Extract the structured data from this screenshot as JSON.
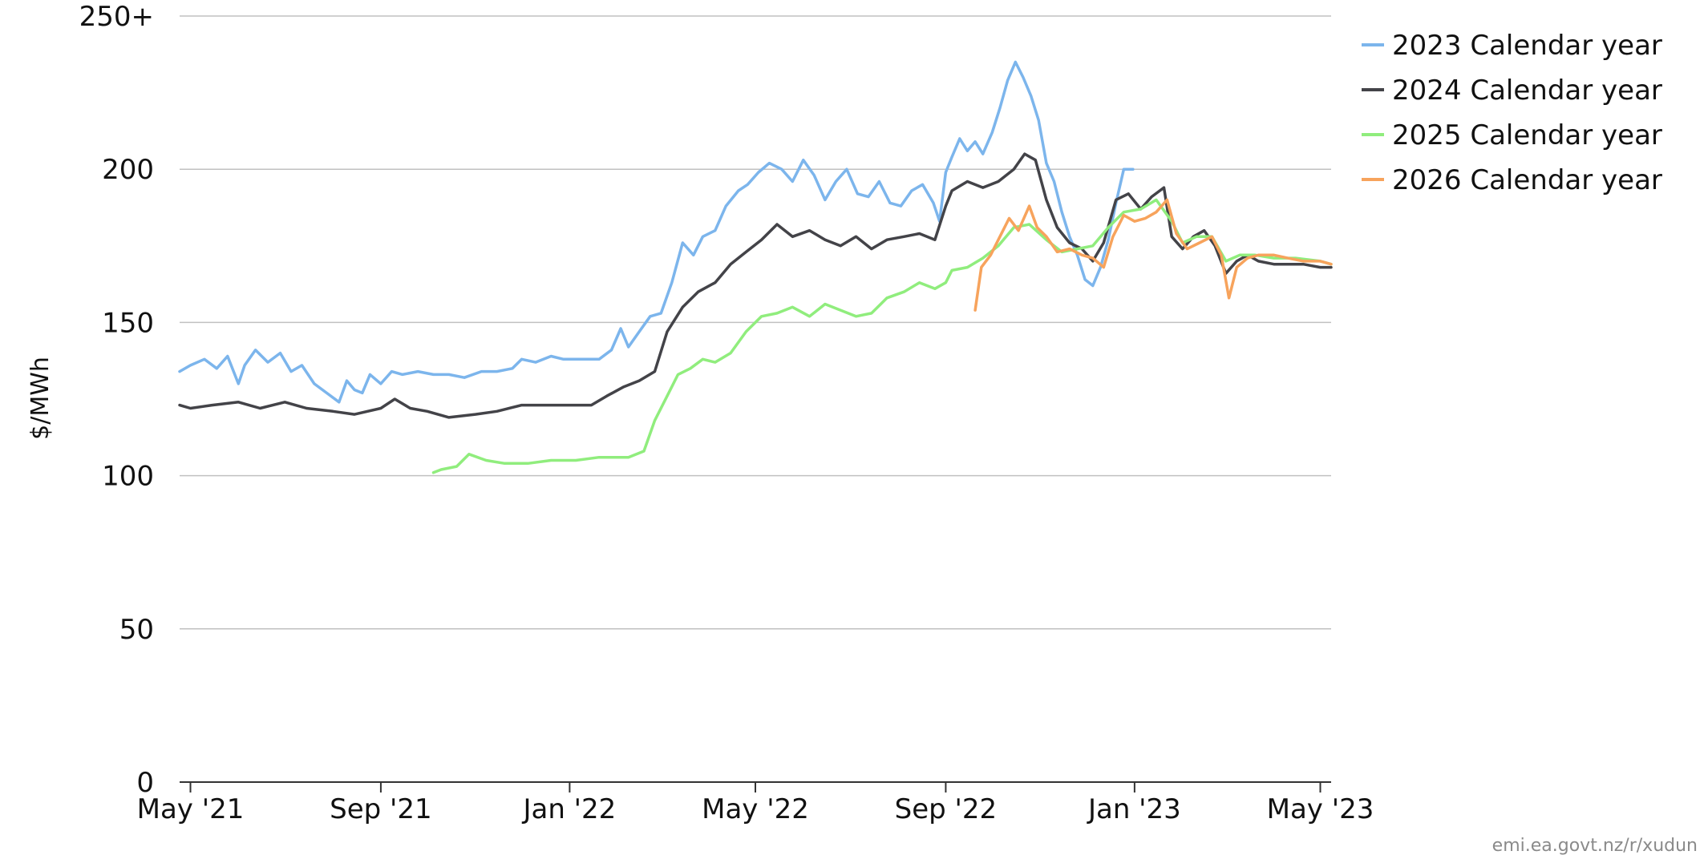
{
  "chart_data": {
    "type": "line",
    "ylabel": "$/MWh",
    "ylim": [
      0,
      250
    ],
    "y_ticks": [
      {
        "value": 0,
        "label": "0"
      },
      {
        "value": 50,
        "label": "50"
      },
      {
        "value": 100,
        "label": "100"
      },
      {
        "value": 150,
        "label": "150"
      },
      {
        "value": 200,
        "label": "200"
      },
      {
        "value": 250,
        "label": "250+"
      }
    ],
    "xlim": [
      "2021-04-24",
      "2023-05-08"
    ],
    "x_ticks": [
      {
        "value": "2021-05-01",
        "label": "May '21"
      },
      {
        "value": "2021-09-01",
        "label": "Sep '21"
      },
      {
        "value": "2022-01-01",
        "label": "Jan '22"
      },
      {
        "value": "2022-05-01",
        "label": "May '22"
      },
      {
        "value": "2022-09-01",
        "label": "Sep '22"
      },
      {
        "value": "2023-01-01",
        "label": "Jan '23"
      },
      {
        "value": "2023-05-01",
        "label": "May '23"
      }
    ],
    "grid": "horizontal",
    "legend_position": "top-right",
    "series": [
      {
        "name": "2023 Calendar year",
        "color": "#7cb5ec",
        "points": [
          [
            "2021-04-24",
            134
          ],
          [
            "2021-05-01",
            136
          ],
          [
            "2021-05-10",
            138
          ],
          [
            "2021-05-18",
            135
          ],
          [
            "2021-05-25",
            139
          ],
          [
            "2021-06-01",
            130
          ],
          [
            "2021-06-05",
            136
          ],
          [
            "2021-06-12",
            141
          ],
          [
            "2021-06-20",
            137
          ],
          [
            "2021-06-28",
            140
          ],
          [
            "2021-07-05",
            134
          ],
          [
            "2021-07-12",
            136
          ],
          [
            "2021-07-20",
            130
          ],
          [
            "2021-07-28",
            127
          ],
          [
            "2021-08-05",
            124
          ],
          [
            "2021-08-10",
            131
          ],
          [
            "2021-08-15",
            128
          ],
          [
            "2021-08-20",
            127
          ],
          [
            "2021-08-25",
            133
          ],
          [
            "2021-09-01",
            130
          ],
          [
            "2021-09-08",
            134
          ],
          [
            "2021-09-15",
            133
          ],
          [
            "2021-09-25",
            134
          ],
          [
            "2021-10-05",
            133
          ],
          [
            "2021-10-15",
            133
          ],
          [
            "2021-10-25",
            132
          ],
          [
            "2021-11-05",
            134
          ],
          [
            "2021-11-15",
            134
          ],
          [
            "2021-11-25",
            135
          ],
          [
            "2021-12-01",
            138
          ],
          [
            "2021-12-10",
            137
          ],
          [
            "2021-12-20",
            139
          ],
          [
            "2021-12-28",
            138
          ],
          [
            "2022-01-10",
            138
          ],
          [
            "2022-01-20",
            138
          ],
          [
            "2022-01-28",
            141
          ],
          [
            "2022-02-03",
            148
          ],
          [
            "2022-02-08",
            142
          ],
          [
            "2022-02-15",
            147
          ],
          [
            "2022-02-22",
            152
          ],
          [
            "2022-03-01",
            153
          ],
          [
            "2022-03-08",
            163
          ],
          [
            "2022-03-15",
            176
          ],
          [
            "2022-03-22",
            172
          ],
          [
            "2022-03-28",
            178
          ],
          [
            "2022-04-05",
            180
          ],
          [
            "2022-04-12",
            188
          ],
          [
            "2022-04-20",
            193
          ],
          [
            "2022-04-26",
            195
          ],
          [
            "2022-05-03",
            199
          ],
          [
            "2022-05-10",
            202
          ],
          [
            "2022-05-18",
            200
          ],
          [
            "2022-05-25",
            196
          ],
          [
            "2022-06-01",
            203
          ],
          [
            "2022-06-08",
            198
          ],
          [
            "2022-06-15",
            190
          ],
          [
            "2022-06-22",
            196
          ],
          [
            "2022-06-29",
            200
          ],
          [
            "2022-07-06",
            192
          ],
          [
            "2022-07-13",
            191
          ],
          [
            "2022-07-20",
            196
          ],
          [
            "2022-07-27",
            189
          ],
          [
            "2022-08-03",
            188
          ],
          [
            "2022-08-10",
            193
          ],
          [
            "2022-08-17",
            195
          ],
          [
            "2022-08-24",
            189
          ],
          [
            "2022-08-28",
            183
          ],
          [
            "2022-09-01",
            199
          ],
          [
            "2022-09-05",
            204
          ],
          [
            "2022-09-10",
            210
          ],
          [
            "2022-09-15",
            206
          ],
          [
            "2022-09-20",
            209
          ],
          [
            "2022-09-25",
            205
          ],
          [
            "2022-10-01",
            212
          ],
          [
            "2022-10-06",
            220
          ],
          [
            "2022-10-11",
            229
          ],
          [
            "2022-10-16",
            235
          ],
          [
            "2022-10-21",
            230
          ],
          [
            "2022-10-26",
            224
          ],
          [
            "2022-10-31",
            216
          ],
          [
            "2022-11-05",
            202
          ],
          [
            "2022-11-10",
            196
          ],
          [
            "2022-11-15",
            186
          ],
          [
            "2022-11-20",
            178
          ],
          [
            "2022-11-25",
            172
          ],
          [
            "2022-11-30",
            164
          ],
          [
            "2022-12-05",
            162
          ],
          [
            "2022-12-10",
            168
          ],
          [
            "2022-12-15",
            177
          ],
          [
            "2022-12-20",
            189
          ],
          [
            "2022-12-25",
            200
          ],
          [
            "2022-12-31",
            200
          ]
        ]
      },
      {
        "name": "2024 Calendar year",
        "color": "#434348",
        "points": [
          [
            "2021-04-24",
            123
          ],
          [
            "2021-05-01",
            122
          ],
          [
            "2021-05-15",
            123
          ],
          [
            "2021-06-01",
            124
          ],
          [
            "2021-06-15",
            122
          ],
          [
            "2021-07-01",
            124
          ],
          [
            "2021-07-15",
            122
          ],
          [
            "2021-08-01",
            121
          ],
          [
            "2021-08-15",
            120
          ],
          [
            "2021-09-01",
            122
          ],
          [
            "2021-09-10",
            125
          ],
          [
            "2021-09-20",
            122
          ],
          [
            "2021-10-01",
            121
          ],
          [
            "2021-10-15",
            119
          ],
          [
            "2021-11-01",
            120
          ],
          [
            "2021-11-15",
            121
          ],
          [
            "2021-12-01",
            123
          ],
          [
            "2021-12-15",
            123
          ],
          [
            "2022-01-01",
            123
          ],
          [
            "2022-01-15",
            123
          ],
          [
            "2022-01-25",
            126
          ],
          [
            "2022-02-05",
            129
          ],
          [
            "2022-02-15",
            131
          ],
          [
            "2022-02-25",
            134
          ],
          [
            "2022-03-05",
            147
          ],
          [
            "2022-03-15",
            155
          ],
          [
            "2022-03-25",
            160
          ],
          [
            "2022-04-05",
            163
          ],
          [
            "2022-04-15",
            169
          ],
          [
            "2022-04-25",
            173
          ],
          [
            "2022-05-05",
            177
          ],
          [
            "2022-05-15",
            182
          ],
          [
            "2022-05-25",
            178
          ],
          [
            "2022-06-05",
            180
          ],
          [
            "2022-06-15",
            177
          ],
          [
            "2022-06-25",
            175
          ],
          [
            "2022-07-05",
            178
          ],
          [
            "2022-07-15",
            174
          ],
          [
            "2022-07-25",
            177
          ],
          [
            "2022-08-05",
            178
          ],
          [
            "2022-08-15",
            179
          ],
          [
            "2022-08-25",
            177
          ],
          [
            "2022-09-01",
            188
          ],
          [
            "2022-09-05",
            193
          ],
          [
            "2022-09-15",
            196
          ],
          [
            "2022-09-25",
            194
          ],
          [
            "2022-10-05",
            196
          ],
          [
            "2022-10-15",
            200
          ],
          [
            "2022-10-22",
            205
          ],
          [
            "2022-10-29",
            203
          ],
          [
            "2022-11-05",
            190
          ],
          [
            "2022-11-12",
            181
          ],
          [
            "2022-11-20",
            176
          ],
          [
            "2022-11-28",
            174
          ],
          [
            "2022-12-05",
            170
          ],
          [
            "2022-12-12",
            176
          ],
          [
            "2022-12-20",
            190
          ],
          [
            "2022-12-28",
            192
          ],
          [
            "2023-01-05",
            187
          ],
          [
            "2023-01-12",
            191
          ],
          [
            "2023-01-20",
            194
          ],
          [
            "2023-01-25",
            178
          ],
          [
            "2023-02-01",
            174
          ],
          [
            "2023-02-08",
            178
          ],
          [
            "2023-02-15",
            180
          ],
          [
            "2023-02-22",
            175
          ],
          [
            "2023-03-01",
            166
          ],
          [
            "2023-03-08",
            170
          ],
          [
            "2023-03-15",
            172
          ],
          [
            "2023-03-22",
            170
          ],
          [
            "2023-04-01",
            169
          ],
          [
            "2023-04-10",
            169
          ],
          [
            "2023-04-20",
            169
          ],
          [
            "2023-05-01",
            168
          ],
          [
            "2023-05-08",
            168
          ]
        ]
      },
      {
        "name": "2025 Calendar year",
        "color": "#90ed7d",
        "points": [
          [
            "2021-10-05",
            101
          ],
          [
            "2021-10-10",
            102
          ],
          [
            "2021-10-20",
            103
          ],
          [
            "2021-10-28",
            107
          ],
          [
            "2021-11-08",
            105
          ],
          [
            "2021-11-20",
            104
          ],
          [
            "2021-12-05",
            104
          ],
          [
            "2021-12-20",
            105
          ],
          [
            "2022-01-05",
            105
          ],
          [
            "2022-01-20",
            106
          ],
          [
            "2022-01-30",
            106
          ],
          [
            "2022-02-08",
            106
          ],
          [
            "2022-02-18",
            108
          ],
          [
            "2022-02-25",
            118
          ],
          [
            "2022-03-05",
            126
          ],
          [
            "2022-03-12",
            133
          ],
          [
            "2022-03-20",
            135
          ],
          [
            "2022-03-28",
            138
          ],
          [
            "2022-04-05",
            137
          ],
          [
            "2022-04-15",
            140
          ],
          [
            "2022-04-25",
            147
          ],
          [
            "2022-05-05",
            152
          ],
          [
            "2022-05-15",
            153
          ],
          [
            "2022-05-25",
            155
          ],
          [
            "2022-06-05",
            152
          ],
          [
            "2022-06-15",
            156
          ],
          [
            "2022-06-25",
            154
          ],
          [
            "2022-07-05",
            152
          ],
          [
            "2022-07-15",
            153
          ],
          [
            "2022-07-25",
            158
          ],
          [
            "2022-08-05",
            160
          ],
          [
            "2022-08-15",
            163
          ],
          [
            "2022-08-25",
            161
          ],
          [
            "2022-09-01",
            163
          ],
          [
            "2022-09-05",
            167
          ],
          [
            "2022-09-15",
            168
          ],
          [
            "2022-09-25",
            171
          ],
          [
            "2022-10-05",
            175
          ],
          [
            "2022-10-15",
            181
          ],
          [
            "2022-10-25",
            182
          ],
          [
            "2022-11-05",
            177
          ],
          [
            "2022-11-15",
            173
          ],
          [
            "2022-11-25",
            174
          ],
          [
            "2022-12-05",
            175
          ],
          [
            "2022-12-15",
            181
          ],
          [
            "2022-12-25",
            186
          ],
          [
            "2023-01-05",
            187
          ],
          [
            "2023-01-15",
            190
          ],
          [
            "2023-01-25",
            183
          ],
          [
            "2023-02-01",
            176
          ],
          [
            "2023-02-10",
            178
          ],
          [
            "2023-02-20",
            178
          ],
          [
            "2023-03-01",
            170
          ],
          [
            "2023-03-10",
            172
          ],
          [
            "2023-03-20",
            172
          ],
          [
            "2023-04-01",
            171
          ],
          [
            "2023-04-15",
            171
          ],
          [
            "2023-05-01",
            170
          ],
          [
            "2023-05-08",
            169
          ]
        ]
      },
      {
        "name": "2026 Calendar year",
        "color": "#f7a35c",
        "points": [
          [
            "2022-09-20",
            154
          ],
          [
            "2022-09-24",
            168
          ],
          [
            "2022-09-30",
            172
          ],
          [
            "2022-10-05",
            177
          ],
          [
            "2022-10-12",
            184
          ],
          [
            "2022-10-18",
            180
          ],
          [
            "2022-10-25",
            188
          ],
          [
            "2022-10-30",
            181
          ],
          [
            "2022-11-05",
            178
          ],
          [
            "2022-11-12",
            173
          ],
          [
            "2022-11-20",
            174
          ],
          [
            "2022-11-28",
            172
          ],
          [
            "2022-12-05",
            171
          ],
          [
            "2022-12-12",
            168
          ],
          [
            "2022-12-18",
            178
          ],
          [
            "2022-12-25",
            185
          ],
          [
            "2023-01-01",
            183
          ],
          [
            "2023-01-08",
            184
          ],
          [
            "2023-01-15",
            186
          ],
          [
            "2023-01-22",
            190
          ],
          [
            "2023-01-28",
            179
          ],
          [
            "2023-02-04",
            174
          ],
          [
            "2023-02-12",
            176
          ],
          [
            "2023-02-20",
            178
          ],
          [
            "2023-02-26",
            172
          ],
          [
            "2023-03-03",
            158
          ],
          [
            "2023-03-08",
            168
          ],
          [
            "2023-03-15",
            171
          ],
          [
            "2023-03-22",
            172
          ],
          [
            "2023-04-01",
            172
          ],
          [
            "2023-04-10",
            171
          ],
          [
            "2023-04-20",
            170
          ],
          [
            "2023-05-01",
            170
          ],
          [
            "2023-05-08",
            169
          ]
        ]
      }
    ]
  },
  "footer": {
    "source": "emi.ea.govt.nz/r/xudun"
  }
}
